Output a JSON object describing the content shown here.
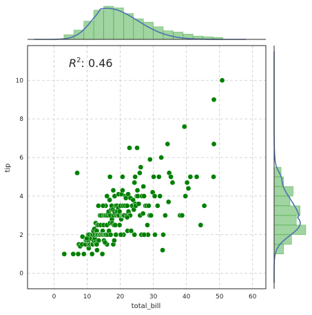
{
  "chart_data": {
    "type": "scatter",
    "annotation": {
      "r_squared_label": "R",
      "superscript": "2",
      "value_text": ": 0.46"
    },
    "xlabel": "total_bill",
    "ylabel": "tip",
    "xlim": [
      -8,
      64
    ],
    "ylim": [
      -0.8,
      11.8
    ],
    "xticks": [
      0,
      10,
      20,
      30,
      40,
      50,
      60
    ],
    "yticks": [
      0,
      2,
      4,
      6,
      8,
      10
    ],
    "grid": true,
    "colors": {
      "points": "#008000",
      "hist": "#2ca02c",
      "kde": "#4c72b0",
      "grid": "#c8c8c8",
      "axis": "#262626"
    },
    "points": [
      [
        3.1,
        1.0
      ],
      [
        5.8,
        1.0
      ],
      [
        7.3,
        1.0
      ],
      [
        7.5,
        1.5
      ],
      [
        7.9,
        1.4
      ],
      [
        8.5,
        1.5
      ],
      [
        8.6,
        1.9
      ],
      [
        9.0,
        1.0
      ],
      [
        9.5,
        1.5
      ],
      [
        9.6,
        1.7
      ],
      [
        9.8,
        1.7
      ],
      [
        10.1,
        1.8
      ],
      [
        10.3,
        1.7
      ],
      [
        10.3,
        2.0
      ],
      [
        10.5,
        1.3
      ],
      [
        10.6,
        1.5
      ],
      [
        10.6,
        2.0
      ],
      [
        11.0,
        1.5
      ],
      [
        11.2,
        1.8
      ],
      [
        11.4,
        2.0
      ],
      [
        11.6,
        1.5
      ],
      [
        11.7,
        1.5
      ],
      [
        11.8,
        2.0
      ],
      [
        11.9,
        2.2
      ],
      [
        12.0,
        1.7
      ],
      [
        12.2,
        2.3
      ],
      [
        12.3,
        1.8
      ],
      [
        12.4,
        2.0
      ],
      [
        12.5,
        1.6
      ],
      [
        12.6,
        2.6
      ],
      [
        12.7,
        1.5
      ],
      [
        12.9,
        2.2
      ],
      [
        13.0,
        2.0
      ],
      [
        13.0,
        1.2
      ],
      [
        13.1,
        2.5
      ],
      [
        13.3,
        2.0
      ],
      [
        13.4,
        2.5
      ],
      [
        13.5,
        1.7
      ],
      [
        13.8,
        2.0
      ],
      [
        13.9,
        3.0
      ],
      [
        14.0,
        2.0
      ],
      [
        14.1,
        2.5
      ],
      [
        14.3,
        3.0
      ],
      [
        14.5,
        2.0
      ],
      [
        14.6,
        1.0
      ],
      [
        14.7,
        2.2
      ],
      [
        14.8,
        2.0
      ],
      [
        15.0,
        3.0
      ],
      [
        15.0,
        2.5
      ],
      [
        15.1,
        1.7
      ],
      [
        15.2,
        2.0
      ],
      [
        15.4,
        3.0
      ],
      [
        15.5,
        2.0
      ],
      [
        15.6,
        3.5
      ],
      [
        15.7,
        3.0
      ],
      [
        15.8,
        2.0
      ],
      [
        16.0,
        2.5
      ],
      [
        16.0,
        4.0
      ],
      [
        16.2,
        3.0
      ],
      [
        16.3,
        2.0
      ],
      [
        16.4,
        3.1
      ],
      [
        16.5,
        3.2
      ],
      [
        16.6,
        2.2
      ],
      [
        16.8,
        3.8
      ],
      [
        16.9,
        2.6
      ],
      [
        17.0,
        3.0
      ],
      [
        17.1,
        2.0
      ],
      [
        17.3,
        3.3
      ],
      [
        17.4,
        3.5
      ],
      [
        17.5,
        2.8
      ],
      [
        17.6,
        2.6
      ],
      [
        17.8,
        3.3
      ],
      [
        17.9,
        1.5
      ],
      [
        18.0,
        3.0
      ],
      [
        18.1,
        2.5
      ],
      [
        18.2,
        3.2
      ],
      [
        18.3,
        4.0
      ],
      [
        18.4,
        3.1
      ],
      [
        18.5,
        2.5
      ],
      [
        18.6,
        3.5
      ],
      [
        18.7,
        2.0
      ],
      [
        18.8,
        3.0
      ],
      [
        19.0,
        3.5
      ],
      [
        19.1,
        3.2
      ],
      [
        19.3,
        3.0
      ],
      [
        19.4,
        3.4
      ],
      [
        19.5,
        4.1
      ],
      [
        19.6,
        3.0
      ],
      [
        19.8,
        3.2
      ],
      [
        20.0,
        2.0
      ],
      [
        20.1,
        3.5
      ],
      [
        20.3,
        2.8
      ],
      [
        20.4,
        4.1
      ],
      [
        20.5,
        3.0
      ],
      [
        20.7,
        4.3
      ],
      [
        20.8,
        3.0
      ],
      [
        20.9,
        3.5
      ],
      [
        21.0,
        3.0
      ],
      [
        21.0,
        2.0
      ],
      [
        21.2,
        3.0
      ],
      [
        21.5,
        3.5
      ],
      [
        21.6,
        4.0
      ],
      [
        21.7,
        3.9
      ],
      [
        22.0,
        3.0
      ],
      [
        22.1,
        3.5
      ],
      [
        22.2,
        2.2
      ],
      [
        22.4,
        4.1
      ],
      [
        22.5,
        3.2
      ],
      [
        22.7,
        3.0
      ],
      [
        23.0,
        3.0
      ],
      [
        23.1,
        3.9
      ],
      [
        23.3,
        2.2
      ],
      [
        23.6,
        3.5
      ],
      [
        23.9,
        3.8
      ],
      [
        24.1,
        3.3
      ],
      [
        24.3,
        4.7
      ],
      [
        24.5,
        5.0
      ],
      [
        24.6,
        3.6
      ],
      [
        24.7,
        3.5
      ],
      [
        25.0,
        4.0
      ],
      [
        25.2,
        4.3
      ],
      [
        25.3,
        4.0
      ],
      [
        25.6,
        3.6
      ],
      [
        25.9,
        5.2
      ],
      [
        26.0,
        3.0
      ],
      [
        26.4,
        2.0
      ],
      [
        26.6,
        4.0
      ],
      [
        26.9,
        3.1
      ],
      [
        27.0,
        4.5
      ],
      [
        27.2,
        4.0
      ],
      [
        27.4,
        2.0
      ],
      [
        27.6,
        3.5
      ],
      [
        28.0,
        3.5
      ],
      [
        28.2,
        2.5
      ],
      [
        28.4,
        2.0
      ],
      [
        28.6,
        3.5
      ],
      [
        28.9,
        3.0
      ],
      [
        29.0,
        5.9
      ],
      [
        29.3,
        3.0
      ],
      [
        29.8,
        4.2
      ],
      [
        30.1,
        5.0
      ],
      [
        30.4,
        4.0
      ],
      [
        31.3,
        3.5
      ],
      [
        31.7,
        5.0
      ],
      [
        32.4,
        6.0
      ],
      [
        32.8,
        1.2
      ],
      [
        33.0,
        2.0
      ],
      [
        33.6,
        3.0
      ],
      [
        34.3,
        6.7
      ],
      [
        34.6,
        3.7
      ],
      [
        34.8,
        5.2
      ],
      [
        35.3,
        5.0
      ],
      [
        35.8,
        4.7
      ],
      [
        38.0,
        3.0
      ],
      [
        38.1,
        3.0
      ],
      [
        38.7,
        3.0
      ],
      [
        39.4,
        7.6
      ],
      [
        39.7,
        4.0
      ],
      [
        40.2,
        4.7
      ],
      [
        40.6,
        4.4
      ],
      [
        41.2,
        5.0
      ],
      [
        43.1,
        5.0
      ],
      [
        44.3,
        2.5
      ],
      [
        45.4,
        3.5
      ],
      [
        48.2,
        5.0
      ],
      [
        48.3,
        6.7
      ],
      [
        48.3,
        9.0
      ],
      [
        50.8,
        10.0
      ],
      [
        25.1,
        6.5
      ],
      [
        24.3,
        2.0
      ],
      [
        7.0,
        5.2
      ],
      [
        16.9,
        5.0
      ],
      [
        30.5,
        2.0
      ],
      [
        22.8,
        6.5
      ],
      [
        32.0,
        4.0
      ],
      [
        16.0,
        1.5
      ],
      [
        26.2,
        5.5
      ],
      [
        20.2,
        2.0
      ],
      [
        13.4,
        3.5
      ],
      [
        17.9,
        4.3
      ],
      [
        20.7,
        5.0
      ],
      [
        9.9,
        1.8
      ],
      [
        11.5,
        1.0
      ],
      [
        15.4,
        1.6
      ],
      [
        19.8,
        2.5
      ],
      [
        12.9,
        1.5
      ],
      [
        14.8,
        3.5
      ],
      [
        27.2,
        2.0
      ],
      [
        22.1,
        2.9
      ],
      [
        18.2,
        1.7
      ]
    ],
    "top_hist": {
      "bin_edges": [
        3,
        6,
        9,
        12,
        15,
        18,
        21,
        24,
        27,
        30,
        33,
        36,
        39,
        42,
        45,
        48,
        51
      ],
      "heights": [
        0.14,
        0.28,
        0.55,
        0.88,
        1.0,
        0.95,
        0.78,
        0.62,
        0.52,
        0.38,
        0.26,
        0.22,
        0.16,
        0.1,
        0.08,
        0.06
      ]
    },
    "right_hist": {
      "bin_edges": [
        1.0,
        1.5,
        2.0,
        2.5,
        3.0,
        3.5,
        4.0,
        4.5,
        5.0,
        5.5
      ],
      "widths": [
        0.3,
        0.55,
        1.0,
        0.7,
        0.82,
        0.5,
        0.6,
        0.3,
        0.22
      ]
    }
  }
}
